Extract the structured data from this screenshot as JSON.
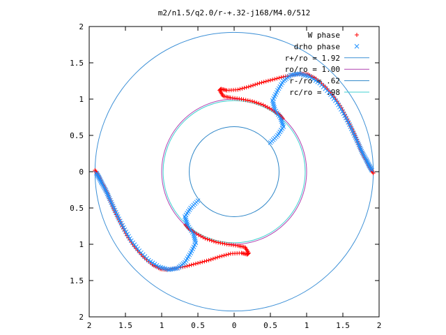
{
  "chart_data": {
    "type": "scatter",
    "title": "m2/n1.5/q2.0/r-+.32-j168/M4.0/512",
    "xlabel": "",
    "ylabel": "",
    "xlim": [
      -2,
      2
    ],
    "ylim": [
      -2,
      2
    ],
    "x_ticks": [
      -2,
      -1.5,
      -1,
      -0.5,
      0,
      0.5,
      1,
      1.5,
      2
    ],
    "y_ticks": [
      -2,
      -1.5,
      -1,
      -0.5,
      0,
      0.5,
      1,
      1.5,
      2
    ],
    "x_tick_labels": [
      "2",
      "1.5",
      "1",
      "0.5",
      "0",
      "0.5",
      "1",
      "1.5",
      "2"
    ],
    "y_tick_labels": [
      "2",
      "1.5",
      "1",
      "0.5",
      "0",
      "0.5",
      "1",
      "1.5",
      "2"
    ],
    "grid": false,
    "legend_position": "top-right",
    "series": [
      {
        "name": "W phase",
        "marker": "plus",
        "color": "#ff0000",
        "points": [
          [
            1.92,
            -0.02
          ],
          [
            1.88,
            0.05
          ],
          [
            1.84,
            0.12
          ],
          [
            1.8,
            0.2
          ],
          [
            1.75,
            0.3
          ],
          [
            1.7,
            0.42
          ],
          [
            1.64,
            0.56
          ],
          [
            1.56,
            0.72
          ],
          [
            1.48,
            0.88
          ],
          [
            1.38,
            1.03
          ],
          [
            1.26,
            1.17
          ],
          [
            1.13,
            1.28
          ],
          [
            1.02,
            1.34
          ],
          [
            0.92,
            1.35
          ],
          [
            0.8,
            1.33
          ],
          [
            0.65,
            1.3
          ],
          [
            0.5,
            1.26
          ],
          [
            0.35,
            1.22
          ],
          [
            0.2,
            1.17
          ],
          [
            0.05,
            1.13
          ],
          [
            -0.1,
            1.12
          ],
          [
            -0.18,
            1.14
          ],
          [
            -0.2,
            1.12
          ],
          [
            -0.15,
            1.04
          ],
          [
            -0.05,
            1.02
          ],
          [
            0.1,
            1.0
          ],
          [
            0.25,
            0.97
          ],
          [
            0.4,
            0.92
          ],
          [
            0.55,
            0.84
          ],
          [
            0.63,
            0.78
          ],
          [
            0.67,
            0.73
          ],
          [
            -1.92,
            0.02
          ],
          [
            -1.88,
            -0.05
          ],
          [
            -1.84,
            -0.12
          ],
          [
            -1.8,
            -0.2
          ],
          [
            -1.75,
            -0.3
          ],
          [
            -1.7,
            -0.42
          ],
          [
            -1.64,
            -0.56
          ],
          [
            -1.56,
            -0.72
          ],
          [
            -1.48,
            -0.88
          ],
          [
            -1.38,
            -1.03
          ],
          [
            -1.26,
            -1.17
          ],
          [
            -1.13,
            -1.28
          ],
          [
            -1.02,
            -1.34
          ],
          [
            -0.92,
            -1.35
          ],
          [
            -0.8,
            -1.33
          ],
          [
            -0.65,
            -1.3
          ],
          [
            -0.5,
            -1.26
          ],
          [
            -0.35,
            -1.22
          ],
          [
            -0.2,
            -1.17
          ],
          [
            -0.05,
            -1.13
          ],
          [
            0.1,
            -1.12
          ],
          [
            0.18,
            -1.14
          ],
          [
            0.2,
            -1.12
          ],
          [
            0.15,
            -1.04
          ],
          [
            0.05,
            -1.02
          ],
          [
            -0.1,
            -1.0
          ],
          [
            -0.25,
            -0.97
          ],
          [
            -0.4,
            -0.92
          ],
          [
            -0.55,
            -0.84
          ],
          [
            -0.63,
            -0.78
          ],
          [
            -0.67,
            -0.73
          ]
        ]
      },
      {
        "name": "drho phase",
        "marker": "cross",
        "color": "#1e90ff",
        "points": [
          [
            1.9,
            0.02
          ],
          [
            1.86,
            0.09
          ],
          [
            1.82,
            0.17
          ],
          [
            1.77,
            0.26
          ],
          [
            1.72,
            0.37
          ],
          [
            1.66,
            0.5
          ],
          [
            1.59,
            0.65
          ],
          [
            1.51,
            0.8
          ],
          [
            1.42,
            0.95
          ],
          [
            1.31,
            1.09
          ],
          [
            1.18,
            1.22
          ],
          [
            1.04,
            1.31
          ],
          [
            0.9,
            1.35
          ],
          [
            0.78,
            1.33
          ],
          [
            0.68,
            1.25
          ],
          [
            0.6,
            1.12
          ],
          [
            0.53,
            0.98
          ],
          [
            0.56,
            0.86
          ],
          [
            0.64,
            0.74
          ],
          [
            0.68,
            0.62
          ],
          [
            0.6,
            0.5
          ],
          [
            0.5,
            0.4
          ],
          [
            -1.9,
            -0.02
          ],
          [
            -1.86,
            -0.09
          ],
          [
            -1.82,
            -0.17
          ],
          [
            -1.77,
            -0.26
          ],
          [
            -1.72,
            -0.37
          ],
          [
            -1.66,
            -0.5
          ],
          [
            -1.59,
            -0.65
          ],
          [
            -1.51,
            -0.8
          ],
          [
            -1.42,
            -0.95
          ],
          [
            -1.31,
            -1.09
          ],
          [
            -1.18,
            -1.22
          ],
          [
            -1.04,
            -1.31
          ],
          [
            -0.9,
            -1.35
          ],
          [
            -0.78,
            -1.33
          ],
          [
            -0.68,
            -1.25
          ],
          [
            -0.6,
            -1.12
          ],
          [
            -0.53,
            -0.98
          ],
          [
            -0.56,
            -0.86
          ],
          [
            -0.64,
            -0.74
          ],
          [
            -0.68,
            -0.62
          ],
          [
            -0.6,
            -0.5
          ],
          [
            -0.5,
            -0.4
          ]
        ]
      },
      {
        "name": "r+/ro = 1.92",
        "marker": "line",
        "shape": "circle",
        "radius": 1.92,
        "color": "#3b8fd6"
      },
      {
        "name": "ro/ro = 1.00",
        "marker": "line",
        "shape": "circle",
        "radius": 1.0,
        "color": "#b040b0"
      },
      {
        "name": "r-/ro = .62",
        "marker": "line",
        "shape": "circle",
        "radius": 0.62,
        "color": "#2e86c8"
      },
      {
        "name": "rc/ro = .98",
        "marker": "line",
        "shape": "circle",
        "radius": 0.98,
        "color": "#40d0d0"
      }
    ]
  }
}
